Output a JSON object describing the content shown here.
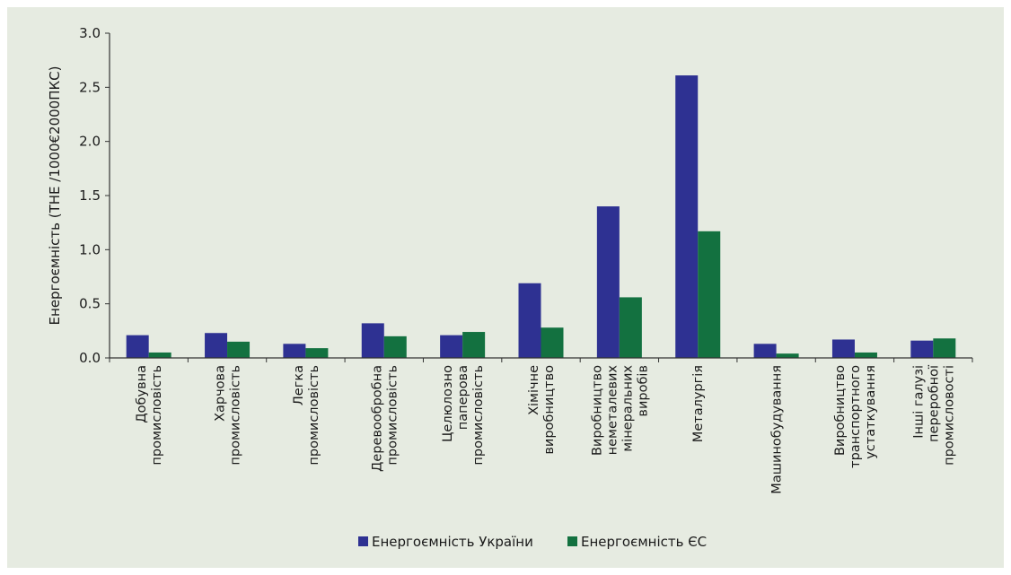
{
  "chart_data": {
    "type": "bar",
    "title": "",
    "ylabel": "Енергоємність  (ТНЕ /1000€2000ПКС)",
    "xlabel": "",
    "ylim": [
      0,
      3.0
    ],
    "yticks": [
      "0.0",
      "0.5",
      "1.0",
      "1.5",
      "2.0",
      "2.5",
      "3.0"
    ],
    "grid": false,
    "legend_position": "bottom-center",
    "categories": [
      [
        "Добувна",
        "промисловість"
      ],
      [
        "Харчова",
        "промисловість"
      ],
      [
        "Легка",
        "промисловість"
      ],
      [
        "Деревообробна",
        "промисловість"
      ],
      [
        "Целюлозно",
        "паперова",
        "промисловість"
      ],
      [
        "Хімічне",
        "виробництво"
      ],
      [
        "Виробництво",
        "неметалевих",
        "мінеральних",
        "виробів"
      ],
      [
        "Металургія"
      ],
      [
        "Машинобудування"
      ],
      [
        "Виробництво",
        "транспортного",
        "устаткування"
      ],
      [
        "Інші галузі",
        "переробної",
        "промисловості"
      ]
    ],
    "series": [
      {
        "name": "Енергоємність України",
        "color": "#2e3192",
        "values": [
          0.21,
          0.23,
          0.13,
          0.32,
          0.21,
          0.69,
          1.4,
          2.61,
          0.13,
          0.17,
          0.16
        ]
      },
      {
        "name": "Енергоємність ЄС",
        "color": "#137140",
        "values": [
          0.05,
          0.15,
          0.09,
          0.2,
          0.24,
          0.28,
          0.56,
          1.17,
          0.04,
          0.05,
          0.18
        ]
      }
    ]
  }
}
